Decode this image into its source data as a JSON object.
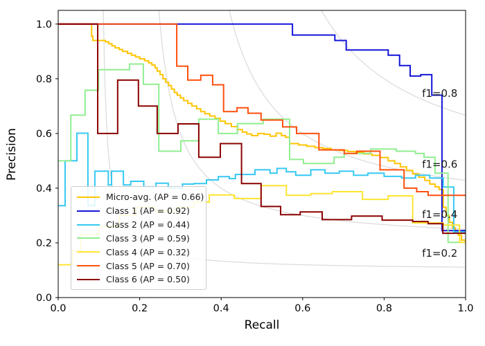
{
  "figure": {
    "background": "#ffffff",
    "spine_color": "#000000",
    "tick_color": "#000000"
  },
  "chart_data": {
    "type": "line",
    "subtype": "precision-recall-step-curves",
    "title": "",
    "xlabel": "Recall",
    "ylabel": "Precision",
    "xlim": [
      0.0,
      1.0
    ],
    "ylim": [
      0.0,
      1.05
    ],
    "xticks": [
      "0.0",
      "0.2",
      "0.4",
      "0.6",
      "0.8",
      "1.0"
    ],
    "yticks": [
      "0.0",
      "0.2",
      "0.4",
      "0.6",
      "0.8",
      "1.0"
    ],
    "grid": false,
    "legend_position": "lower left",
    "iso_f1_curves": {
      "f_values": [
        0.2,
        0.4,
        0.6,
        0.8
      ],
      "color": "#dcdcdc",
      "annotation_color": "#1a1a1a",
      "annotations": [
        {
          "text": "f1=0.2",
          "x": 0.893,
          "y": 0.162
        },
        {
          "text": "f1=0.4",
          "x": 0.893,
          "y": 0.303
        },
        {
          "text": "f1=0.6",
          "x": 0.893,
          "y": 0.487
        },
        {
          "text": "f1=0.8",
          "x": 0.893,
          "y": 0.747
        }
      ]
    },
    "series": [
      {
        "key": "micro-avg",
        "name": "Micro-avg. (AP = 0.66)",
        "ap": 0.66,
        "color": "#FFC400",
        "points": [
          [
            0,
            1.0
          ],
          [
            0.082,
            0.955
          ],
          [
            0.085,
            0.94
          ],
          [
            0.116,
            0.935
          ],
          [
            0.124,
            0.928
          ],
          [
            0.132,
            0.92
          ],
          [
            0.14,
            0.913
          ],
          [
            0.15,
            0.907
          ],
          [
            0.158,
            0.9
          ],
          [
            0.17,
            0.893
          ],
          [
            0.18,
            0.886
          ],
          [
            0.19,
            0.88
          ],
          [
            0.2,
            0.873
          ],
          [
            0.212,
            0.866
          ],
          [
            0.222,
            0.858
          ],
          [
            0.23,
            0.85
          ],
          [
            0.238,
            0.84
          ],
          [
            0.243,
            0.828
          ],
          [
            0.25,
            0.815
          ],
          [
            0.257,
            0.8
          ],
          [
            0.264,
            0.787
          ],
          [
            0.271,
            0.775
          ],
          [
            0.278,
            0.762
          ],
          [
            0.285,
            0.75
          ],
          [
            0.292,
            0.74
          ],
          [
            0.3,
            0.73
          ],
          [
            0.308,
            0.72
          ],
          [
            0.318,
            0.71
          ],
          [
            0.328,
            0.7
          ],
          [
            0.34,
            0.69
          ],
          [
            0.35,
            0.68
          ],
          [
            0.36,
            0.672
          ],
          [
            0.372,
            0.664
          ],
          [
            0.385,
            0.655
          ],
          [
            0.398,
            0.645
          ],
          [
            0.41,
            0.636
          ],
          [
            0.425,
            0.625
          ],
          [
            0.44,
            0.614
          ],
          [
            0.452,
            0.605
          ],
          [
            0.463,
            0.598
          ],
          [
            0.475,
            0.592
          ],
          [
            0.49,
            0.6
          ],
          [
            0.505,
            0.597
          ],
          [
            0.52,
            0.59
          ],
          [
            0.535,
            0.601
          ],
          [
            0.548,
            0.592
          ],
          [
            0.558,
            0.586
          ],
          [
            0.568,
            0.563
          ],
          [
            0.59,
            0.558
          ],
          [
            0.61,
            0.553
          ],
          [
            0.63,
            0.548
          ],
          [
            0.65,
            0.545
          ],
          [
            0.67,
            0.54
          ],
          [
            0.69,
            0.538
          ],
          [
            0.71,
            0.534
          ],
          [
            0.73,
            0.53
          ],
          [
            0.75,
            0.525
          ],
          [
            0.77,
            0.52
          ],
          [
            0.79,
            0.512
          ],
          [
            0.81,
            0.5
          ],
          [
            0.826,
            0.49
          ],
          [
            0.84,
            0.478
          ],
          [
            0.855,
            0.465
          ],
          [
            0.87,
            0.452
          ],
          [
            0.885,
            0.44
          ],
          [
            0.9,
            0.428
          ],
          [
            0.912,
            0.415
          ],
          [
            0.925,
            0.405
          ],
          [
            0.935,
            0.395
          ],
          [
            0.945,
            0.33
          ],
          [
            0.952,
            0.3
          ],
          [
            0.96,
            0.275
          ],
          [
            0.968,
            0.255
          ],
          [
            0.975,
            0.24
          ],
          [
            0.982,
            0.228
          ],
          [
            0.99,
            0.21
          ],
          [
            1.0,
            0.197
          ]
        ]
      },
      {
        "key": "class-1",
        "name": "Class 1 (AP = 0.92)",
        "ap": 0.92,
        "color": "#1414D9",
        "points": [
          [
            0,
            1.0
          ],
          [
            0.575,
            0.96
          ],
          [
            0.679,
            0.94
          ],
          [
            0.707,
            0.905
          ],
          [
            0.81,
            0.886
          ],
          [
            0.838,
            0.848
          ],
          [
            0.864,
            0.81
          ],
          [
            0.89,
            0.815
          ],
          [
            0.917,
            0.74
          ],
          [
            0.942,
            0.245
          ],
          [
            1.0,
            0.245
          ]
        ]
      },
      {
        "key": "class-2",
        "name": "Class 2 (AP = 0.44)",
        "ap": 0.44,
        "color": "#35C8F2",
        "points": [
          [
            0,
            0.336
          ],
          [
            0.017,
            0.5
          ],
          [
            0.046,
            0.601
          ],
          [
            0.073,
            0.336
          ],
          [
            0.09,
            0.462
          ],
          [
            0.123,
            0.412
          ],
          [
            0.131,
            0.462
          ],
          [
            0.16,
            0.412
          ],
          [
            0.178,
            0.425
          ],
          [
            0.21,
            0.405
          ],
          [
            0.24,
            0.418
          ],
          [
            0.27,
            0.4
          ],
          [
            0.305,
            0.415
          ],
          [
            0.333,
            0.417
          ],
          [
            0.364,
            0.43
          ],
          [
            0.393,
            0.442
          ],
          [
            0.42,
            0.435
          ],
          [
            0.435,
            0.45
          ],
          [
            0.483,
            0.467
          ],
          [
            0.52,
            0.455
          ],
          [
            0.537,
            0.472
          ],
          [
            0.56,
            0.46
          ],
          [
            0.583,
            0.447
          ],
          [
            0.62,
            0.467
          ],
          [
            0.655,
            0.455
          ],
          [
            0.69,
            0.462
          ],
          [
            0.725,
            0.447
          ],
          [
            0.76,
            0.455
          ],
          [
            0.8,
            0.443
          ],
          [
            0.843,
            0.437
          ],
          [
            0.877,
            0.447
          ],
          [
            0.912,
            0.437
          ],
          [
            0.945,
            0.404
          ],
          [
            0.971,
            0.24
          ],
          [
            1.0,
            0.24
          ]
        ]
      },
      {
        "key": "class-3",
        "name": "Class 3 (AP = 0.59)",
        "ap": 0.59,
        "color": "#90EE90",
        "points": [
          [
            0,
            0.5
          ],
          [
            0.031,
            0.667
          ],
          [
            0.066,
            0.758
          ],
          [
            0.099,
            0.833
          ],
          [
            0.175,
            0.854
          ],
          [
            0.209,
            0.78
          ],
          [
            0.247,
            0.535
          ],
          [
            0.301,
            0.573
          ],
          [
            0.345,
            0.652
          ],
          [
            0.393,
            0.6
          ],
          [
            0.44,
            0.636
          ],
          [
            0.503,
            0.652
          ],
          [
            0.568,
            0.505
          ],
          [
            0.602,
            0.49
          ],
          [
            0.677,
            0.513
          ],
          [
            0.702,
            0.527
          ],
          [
            0.767,
            0.543
          ],
          [
            0.83,
            0.535
          ],
          [
            0.877,
            0.527
          ],
          [
            0.898,
            0.513
          ],
          [
            0.925,
            0.455
          ],
          [
            0.957,
            0.202
          ],
          [
            1.0,
            0.202
          ]
        ]
      },
      {
        "key": "class-4",
        "name": "Class 4 (AP = 0.32)",
        "ap": 0.32,
        "color": "#FFE430",
        "points": [
          [
            0,
            0.12
          ],
          [
            0.035,
            0.17
          ],
          [
            0.055,
            0.23
          ],
          [
            0.1,
            0.26
          ],
          [
            0.15,
            0.3
          ],
          [
            0.19,
            0.33
          ],
          [
            0.24,
            0.315
          ],
          [
            0.29,
            0.33
          ],
          [
            0.333,
            0.349
          ],
          [
            0.371,
            0.375
          ],
          [
            0.432,
            0.362
          ],
          [
            0.498,
            0.409
          ],
          [
            0.56,
            0.374
          ],
          [
            0.62,
            0.38
          ],
          [
            0.673,
            0.387
          ],
          [
            0.747,
            0.359
          ],
          [
            0.81,
            0.372
          ],
          [
            0.87,
            0.273
          ],
          [
            0.945,
            0.265
          ],
          [
            0.985,
            0.202
          ],
          [
            1.0,
            0.195
          ]
        ]
      },
      {
        "key": "class-5",
        "name": "Class 5 (AP = 0.70)",
        "ap": 0.7,
        "color": "#FF4E0C",
        "points": [
          [
            0,
            1.0
          ],
          [
            0.291,
            0.846
          ],
          [
            0.318,
            0.795
          ],
          [
            0.35,
            0.813
          ],
          [
            0.379,
            0.778
          ],
          [
            0.406,
            0.68
          ],
          [
            0.439,
            0.694
          ],
          [
            0.466,
            0.674
          ],
          [
            0.498,
            0.649
          ],
          [
            0.551,
            0.624
          ],
          [
            0.585,
            0.6
          ],
          [
            0.64,
            0.54
          ],
          [
            0.702,
            0.527
          ],
          [
            0.733,
            0.535
          ],
          [
            0.79,
            0.467
          ],
          [
            0.849,
            0.4
          ],
          [
            0.88,
            0.387
          ],
          [
            0.908,
            0.374
          ],
          [
            1.0,
            0.371
          ]
        ]
      },
      {
        "key": "class-6",
        "name": "Class 6 (AP = 0.50)",
        "ap": 0.5,
        "color": "#8B0000",
        "points": [
          [
            0,
            1.0
          ],
          [
            0.097,
            0.6
          ],
          [
            0.146,
            0.795
          ],
          [
            0.197,
            0.7
          ],
          [
            0.243,
            0.6
          ],
          [
            0.294,
            0.635
          ],
          [
            0.345,
            0.513
          ],
          [
            0.398,
            0.563
          ],
          [
            0.45,
            0.417
          ],
          [
            0.498,
            0.333
          ],
          [
            0.546,
            0.303
          ],
          [
            0.594,
            0.313
          ],
          [
            0.648,
            0.285
          ],
          [
            0.72,
            0.298
          ],
          [
            0.795,
            0.283
          ],
          [
            0.87,
            0.278
          ],
          [
            0.908,
            0.27
          ],
          [
            0.944,
            0.235
          ],
          [
            1.0,
            0.235
          ]
        ]
      }
    ]
  }
}
